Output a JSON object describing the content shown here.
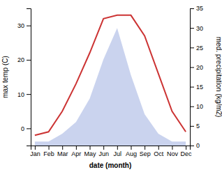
{
  "chart_data": {
    "type": "line",
    "categories": [
      "Jan",
      "Feb",
      "Mar",
      "Apr",
      "May",
      "Jun",
      "Jul",
      "Aug",
      "Sep",
      "Oct",
      "Nov",
      "Dec"
    ],
    "series": [
      {
        "type": "area",
        "axis": "y2",
        "color": "#b8c4e8",
        "values": [
          1,
          1,
          3,
          6,
          12,
          22,
          30,
          18,
          8,
          3,
          1,
          1
        ]
      },
      {
        "type": "line",
        "color": "#cc3333",
        "values": [
          -2,
          -1,
          5,
          13,
          22,
          32,
          33,
          33,
          27,
          16,
          5,
          -1
        ]
      }
    ],
    "xlabel": "date (month)",
    "ylabel": "max temp (C)",
    "y2label": "med. precipitation (kg/m2)",
    "ylim": [
      -5,
      35
    ],
    "yticks": [
      0,
      10,
      20,
      30
    ],
    "y2lim": [
      0,
      35
    ],
    "y2ticks": [
      0,
      5,
      10,
      15,
      20,
      25,
      30,
      35
    ],
    "grid": false
  }
}
